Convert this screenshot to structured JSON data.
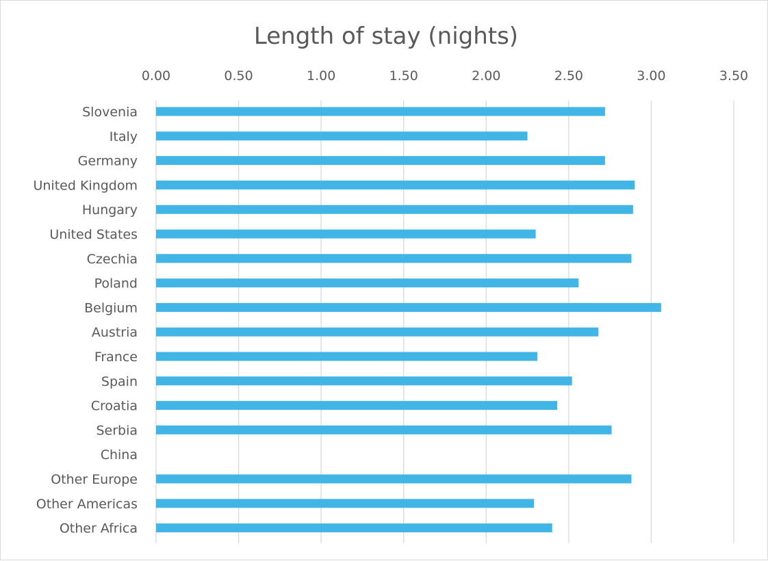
{
  "chart_data": {
    "type": "bar",
    "orientation": "horizontal",
    "title": "Length of stay (nights)",
    "xlabel": "",
    "ylabel": "",
    "xlim": [
      0,
      3.5
    ],
    "ticks": [
      "0.00",
      "0.50",
      "1.00",
      "1.50",
      "2.00",
      "2.50",
      "3.00",
      "3.50"
    ],
    "tick_values": [
      0,
      0.5,
      1,
      1.5,
      2,
      2.5,
      3,
      3.5
    ],
    "axis_position": "top",
    "grid": true,
    "bar_color": "#41B6E6",
    "categories": [
      "Slovenia",
      "Italy",
      "Germany",
      "United Kingdom",
      "Hungary",
      "United States",
      "Czechia",
      "Poland",
      "Belgium",
      "Austria",
      "France",
      "Spain",
      "Croatia",
      "Serbia",
      "China",
      "Other Europe",
      "Other Americas",
      "Other Africa"
    ],
    "values": [
      2.72,
      2.25,
      2.72,
      2.9,
      2.89,
      2.3,
      2.88,
      2.56,
      3.06,
      2.68,
      2.31,
      2.52,
      2.43,
      2.76,
      null,
      2.88,
      2.29,
      2.4
    ]
  }
}
